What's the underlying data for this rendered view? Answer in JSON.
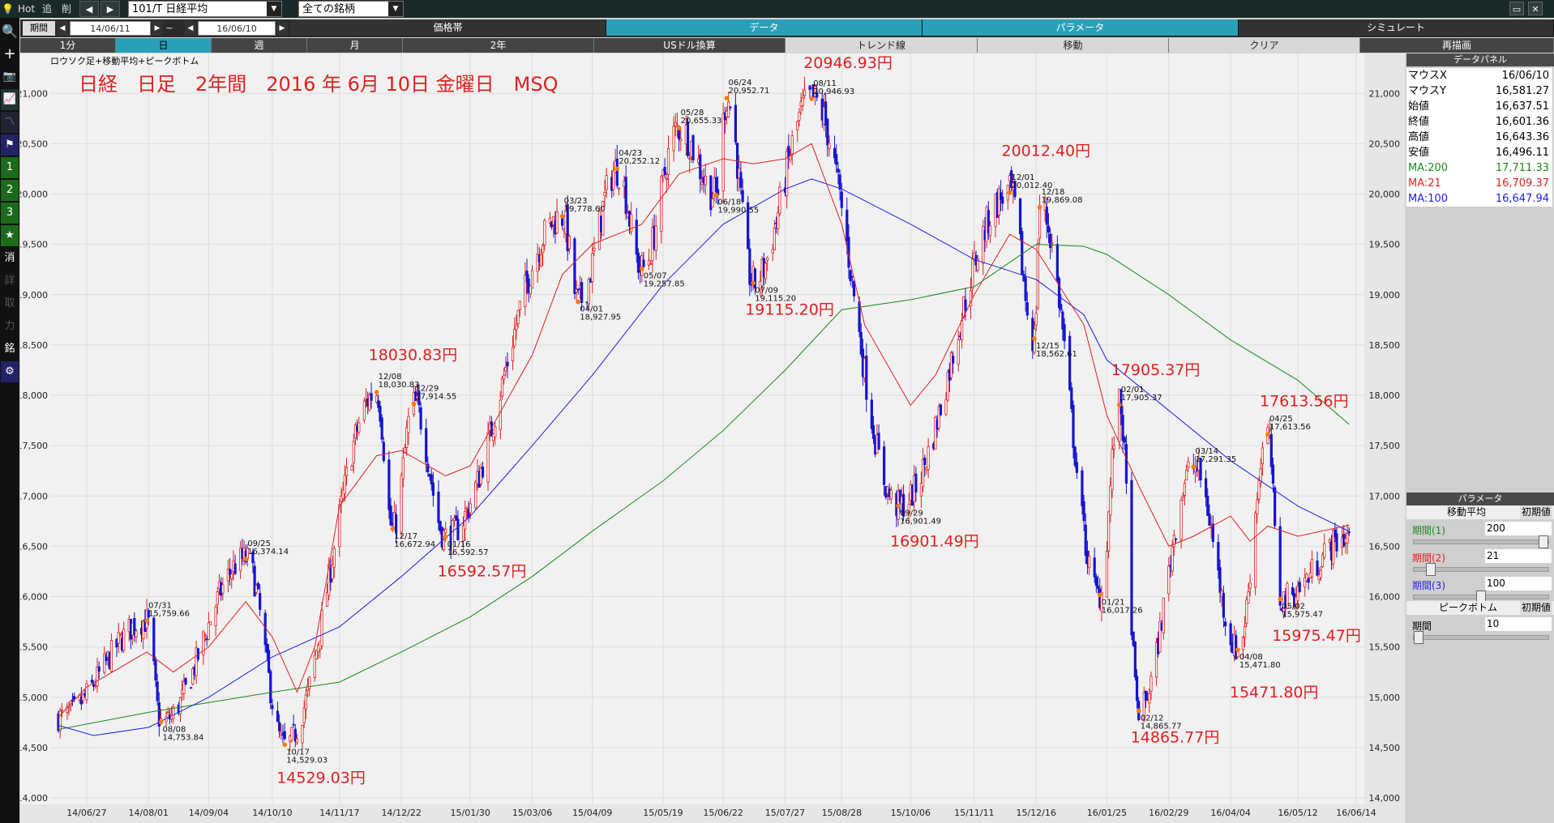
{
  "toolbar": {
    "hot": "Hot",
    "add": "追",
    "del": "削",
    "prev": "◀",
    "next": "▶",
    "symbol": "101/T 日経平均",
    "filter": "全ての銘柄"
  },
  "period": {
    "label": "期間",
    "from": "14/06/11",
    "tilde": "~",
    "to": "16/06/10"
  },
  "tabs_top": [
    "価格帯",
    "データ",
    "パラメータ",
    "シミュレート"
  ],
  "tabs_second": [
    "1分",
    "日",
    "週",
    "月",
    "2年",
    "USドル換算",
    "トレンド線",
    "移動",
    "クリア",
    "再描画"
  ],
  "left_tools": [
    "検索",
    "追加",
    "カメラ",
    "チャート1",
    "チャート2",
    "フラグ",
    "1",
    "2",
    "3",
    "★",
    "消",
    "詳",
    "取",
    "力",
    "銘",
    "設定"
  ],
  "left_text_labels": [
    "1",
    "2",
    "3",
    "★",
    "消",
    "詳",
    "取",
    "力",
    "銘"
  ],
  "panel": {
    "data_title": "データパネル",
    "rows": [
      {
        "k": "マウスX",
        "v": "16/06/10",
        "color": "#000000"
      },
      {
        "k": "マウスY",
        "v": "16,581.27",
        "color": "#000000"
      },
      {
        "k": "始値",
        "v": "16,637.51",
        "color": "#000000"
      },
      {
        "k": "終値",
        "v": "16,601.36",
        "color": "#000000"
      },
      {
        "k": "高値",
        "v": "16,643.36",
        "color": "#000000"
      },
      {
        "k": "安値",
        "v": "16,496.11",
        "color": "#000000"
      },
      {
        "k": "MA:200",
        "v": "17,711.33",
        "color": "#1a8a1a"
      },
      {
        "k": "MA:21",
        "v": "16,709.37",
        "color": "#e02020"
      },
      {
        "k": "MA:100",
        "v": "16,647.94",
        "color": "#2020e0"
      }
    ],
    "param_title": "パラメータ",
    "ma_header": "移動平均",
    "reset": "初期値",
    "ma_params": [
      {
        "label": "期間(1)",
        "value": "200",
        "color": "#1a8a1a",
        "pos": 1.0
      },
      {
        "label": "期間(2)",
        "value": "21",
        "color": "#e02020",
        "pos": 0.1
      },
      {
        "label": "期間(3)",
        "value": "100",
        "color": "#2020e0",
        "pos": 0.5
      }
    ],
    "pb_header": "ピークボトム",
    "pb_params": [
      {
        "label": "期間",
        "value": "10",
        "pos": 0.0
      }
    ]
  },
  "chart_data": {
    "type": "candlestick",
    "subtitle": "ロウソク足+移動平均+ピークボトム",
    "title": "日経　日足　2年間　2016 年 6月 10日 金曜日　MSQ",
    "ylim": [
      14000,
      21300
    ],
    "yticks": [
      14000,
      14500,
      15000,
      15500,
      16000,
      16500,
      17000,
      17500,
      18000,
      18500,
      19000,
      19500,
      20000,
      20500,
      21000
    ],
    "xticks": [
      "14/06/27",
      "14/08/01",
      "14/09/04",
      "14/10/10",
      "14/11/17",
      "14/12/22",
      "15/01/30",
      "15/03/06",
      "15/04/09",
      "15/05/19",
      "15/06/22",
      "15/07/27",
      "15/08/28",
      "15/10/06",
      "15/11/11",
      "15/12/16",
      "16/01/25",
      "16/02/29",
      "16/04/04",
      "16/05/12",
      "16/06/14"
    ],
    "x_range": [
      "14/06/11",
      "16/06/10"
    ],
    "grid": true,
    "colors": {
      "up": "#e02020",
      "down": "#1414d0",
      "ma21": "#e02020",
      "ma100": "#2020e0",
      "ma200": "#1a8a1a"
    },
    "peaks": [
      {
        "date": "14/07/31",
        "value": 15759.66,
        "label": "07/31",
        "vlabel": "15,759.66",
        "type": "peak"
      },
      {
        "date": "14/08/08",
        "value": 14753.84,
        "label": "08/08",
        "vlabel": "14,753.84",
        "type": "bottom"
      },
      {
        "date": "14/09/25",
        "value": 16374.14,
        "label": "09/25",
        "vlabel": "16,374.14",
        "type": "peak"
      },
      {
        "date": "14/10/17",
        "value": 14529.03,
        "label": "10/17",
        "vlabel": "14,529.03",
        "type": "bottom"
      },
      {
        "date": "14/12/08",
        "value": 18030.83,
        "label": "12/08",
        "vlabel": "18,030.83",
        "type": "peak"
      },
      {
        "date": "14/12/17",
        "value": 16672.94,
        "label": "12/17",
        "vlabel": "16,672.94",
        "type": "bottom"
      },
      {
        "date": "14/12/29",
        "value": 17914.55,
        "label": "12/29",
        "vlabel": "17,914.55",
        "type": "peak"
      },
      {
        "date": "15/01/16",
        "value": 16592.57,
        "label": "01/16",
        "vlabel": "16,592.57",
        "type": "bottom"
      },
      {
        "date": "15/03/23",
        "value": 19778.6,
        "label": "03/23",
        "vlabel": "19,778.60",
        "type": "peak"
      },
      {
        "date": "15/04/01",
        "value": 18927.95,
        "label": "04/01",
        "vlabel": "18,927.95",
        "type": "bottom"
      },
      {
        "date": "15/04/23",
        "value": 20252.12,
        "label": "04/23",
        "vlabel": "20,252.12",
        "type": "peak"
      },
      {
        "date": "15/05/07",
        "value": 19257.85,
        "label": "05/07",
        "vlabel": "19,257.85",
        "type": "bottom"
      },
      {
        "date": "15/05/28",
        "value": 20655.33,
        "label": "05/28",
        "vlabel": "20,655.33",
        "type": "peak"
      },
      {
        "date": "15/06/18",
        "value": 19990.55,
        "label": "06/18",
        "vlabel": "19,990.55",
        "type": "bottom"
      },
      {
        "date": "15/06/24",
        "value": 20952.71,
        "label": "06/24",
        "vlabel": "20,952.71",
        "type": "peak"
      },
      {
        "date": "15/07/09",
        "value": 19115.2,
        "label": "07/09",
        "vlabel": "19,115.20",
        "type": "bottom"
      },
      {
        "date": "15/08/11",
        "value": 20946.93,
        "label": "08/11",
        "vlabel": "20,946.93",
        "type": "peak"
      },
      {
        "date": "15/09/29",
        "value": 16901.49,
        "label": "09/29",
        "vlabel": "16,901.49",
        "type": "bottom"
      },
      {
        "date": "15/12/01",
        "value": 20012.4,
        "label": "12/01",
        "vlabel": "20,012.40",
        "type": "peak"
      },
      {
        "date": "15/12/15",
        "value": 18562.61,
        "label": "12/15",
        "vlabel": "18,562.61",
        "type": "bottom"
      },
      {
        "date": "15/12/18",
        "value": 19869.08,
        "label": "12/18",
        "vlabel": "19,869.08",
        "type": "peak"
      },
      {
        "date": "16/01/21",
        "value": 16017.26,
        "label": "01/21",
        "vlabel": "16,017.26",
        "type": "bottom"
      },
      {
        "date": "16/02/01",
        "value": 17905.37,
        "label": "02/01",
        "vlabel": "17,905.37",
        "type": "peak"
      },
      {
        "date": "16/02/12",
        "value": 14865.77,
        "label": "02/12",
        "vlabel": "14,865.77",
        "type": "bottom"
      },
      {
        "date": "16/03/14",
        "value": 17291.35,
        "label": "03/14",
        "vlabel": "17,291.35",
        "type": "peak"
      },
      {
        "date": "16/04/08",
        "value": 15471.8,
        "label": "04/08",
        "vlabel": "15,471.80",
        "type": "bottom"
      },
      {
        "date": "16/04/25",
        "value": 17613.56,
        "label": "04/25",
        "vlabel": "17,613.56",
        "type": "peak"
      },
      {
        "date": "16/05/02",
        "value": 15975.47,
        "label": "05/02",
        "vlabel": "15,975.47",
        "type": "bottom"
      }
    ],
    "annotations": [
      {
        "text": "14529.03円",
        "date": "14/10/17",
        "value": 14150
      },
      {
        "text": "18030.83円",
        "date": "14/12/08",
        "value": 18350
      },
      {
        "text": "16592.57円",
        "date": "15/01/16",
        "value": 16200
      },
      {
        "text": "19115.20円",
        "date": "15/07/09",
        "value": 18800
      },
      {
        "text": "20946.93円",
        "date": "15/08/11",
        "value": 21250
      },
      {
        "text": "16901.49円",
        "date": "15/09/29",
        "value": 16500
      },
      {
        "text": "20012.40円",
        "date": "15/12/01",
        "value": 20380
      },
      {
        "text": "17905.37円",
        "date": "16/02/01",
        "value": 18200
      },
      {
        "text": "14865.77円",
        "date": "16/02/12",
        "value": 14550
      },
      {
        "text": "15471.80円",
        "date": "16/04/08",
        "value": 15000
      },
      {
        "text": "17613.56円",
        "date": "16/04/25",
        "value": 17890
      },
      {
        "text": "15975.47円",
        "date": "16/05/02",
        "value": 15560
      }
    ],
    "ma200": [
      [
        "14/06/11",
        14680
      ],
      [
        "14/08/01",
        14850
      ],
      [
        "14/10/10",
        15050
      ],
      [
        "14/11/17",
        15150
      ],
      [
        "14/12/22",
        15450
      ],
      [
        "15/01/30",
        15800
      ],
      [
        "15/03/06",
        16200
      ],
      [
        "15/04/09",
        16650
      ],
      [
        "15/05/19",
        17150
      ],
      [
        "15/06/22",
        17650
      ],
      [
        "15/07/27",
        18250
      ],
      [
        "15/08/28",
        18850
      ],
      [
        "15/10/06",
        18950
      ],
      [
        "15/11/11",
        19080
      ],
      [
        "15/12/16",
        19500
      ],
      [
        "16/01/12",
        19480
      ],
      [
        "16/01/25",
        19400
      ],
      [
        "16/02/29",
        19000
      ],
      [
        "16/04/04",
        18550
      ],
      [
        "16/05/12",
        18150
      ],
      [
        "16/06/10",
        17711
      ]
    ],
    "ma100": [
      [
        "14/06/11",
        14720
      ],
      [
        "14/07/01",
        14620
      ],
      [
        "14/08/01",
        14700
      ],
      [
        "14/09/04",
        15000
      ],
      [
        "14/10/10",
        15400
      ],
      [
        "14/11/17",
        15700
      ],
      [
        "14/12/22",
        16200
      ],
      [
        "15/01/30",
        16800
      ],
      [
        "15/03/06",
        17500
      ],
      [
        "15/04/09",
        18200
      ],
      [
        "15/05/19",
        19100
      ],
      [
        "15/06/22",
        19700
      ],
      [
        "15/07/27",
        20050
      ],
      [
        "15/08/11",
        20150
      ],
      [
        "15/08/28",
        20050
      ],
      [
        "15/10/06",
        19700
      ],
      [
        "15/11/11",
        19350
      ],
      [
        "15/12/16",
        19150
      ],
      [
        "16/01/12",
        18800
      ],
      [
        "16/01/25",
        18350
      ],
      [
        "16/02/29",
        17850
      ],
      [
        "16/04/04",
        17350
      ],
      [
        "16/05/12",
        16900
      ],
      [
        "16/06/10",
        16648
      ]
    ],
    "ma21": [
      [
        "14/06/11",
        14800
      ],
      [
        "14/06/27",
        15100
      ],
      [
        "14/07/31",
        15450
      ],
      [
        "14/08/15",
        15250
      ],
      [
        "14/09/04",
        15500
      ],
      [
        "14/09/25",
        15950
      ],
      [
        "14/10/10",
        15600
      ],
      [
        "14/10/24",
        15050
      ],
      [
        "14/11/03",
        15500
      ],
      [
        "14/11/17",
        16900
      ],
      [
        "14/12/08",
        17400
      ],
      [
        "14/12/22",
        17450
      ],
      [
        "15/01/16",
        17200
      ],
      [
        "15/01/30",
        17300
      ],
      [
        "15/03/06",
        18400
      ],
      [
        "15/03/23",
        19200
      ],
      [
        "15/04/09",
        19500
      ],
      [
        "15/05/07",
        19700
      ],
      [
        "15/05/28",
        20200
      ],
      [
        "15/06/22",
        20350
      ],
      [
        "15/07/09",
        20300
      ],
      [
        "15/07/27",
        20350
      ],
      [
        "15/08/11",
        20500
      ],
      [
        "15/08/28",
        19700
      ],
      [
        "15/09/10",
        18700
      ],
      [
        "15/10/06",
        17900
      ],
      [
        "15/10/20",
        18200
      ],
      [
        "15/11/11",
        19000
      ],
      [
        "15/12/01",
        19600
      ],
      [
        "15/12/16",
        19450
      ],
      [
        "16/01/12",
        18700
      ],
      [
        "16/01/25",
        17800
      ],
      [
        "16/02/12",
        17100
      ],
      [
        "16/02/29",
        16500
      ],
      [
        "16/03/14",
        16600
      ],
      [
        "16/04/04",
        16800
      ],
      [
        "16/04/15",
        16550
      ],
      [
        "16/04/25",
        16700
      ],
      [
        "16/05/12",
        16600
      ],
      [
        "16/06/10",
        16709
      ]
    ]
  }
}
